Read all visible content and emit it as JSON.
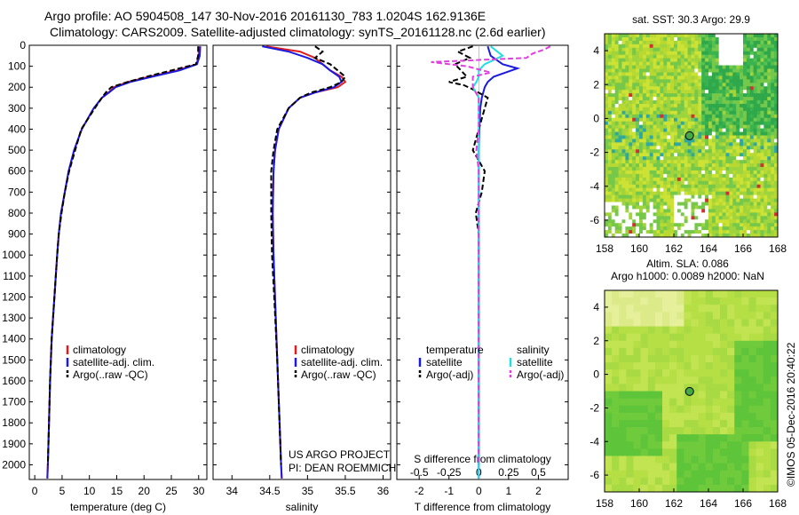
{
  "title_line1": "Argo profile: AO 5904508_147 30-Nov-2016 20161130_783 1.0204S 162.9136E",
  "title_line2": "Climatology: CARS2009. Satellite-adjusted climatology: synTS_20161128.nc (2.6d earlier)",
  "credit": "©IMOS 05-Dec-2016 20:40:22",
  "project_line1": "US ARGO PROJECT",
  "project_line2": "PI: DEAN ROEMMICH",
  "colors": {
    "climatology": "#e41a1c",
    "satellite": "#1a1ae0",
    "argo": "#000000",
    "sal_satellite": "#22dede",
    "sal_argo": "#e040e0"
  },
  "chart_data": [
    {
      "type": "line",
      "xlabel": "temperature (deg C)",
      "ylabel": "",
      "xticks": [
        "0",
        "5",
        "10",
        "15",
        "20",
        "25",
        "30"
      ],
      "yticks": [
        "0",
        "100",
        "200",
        "300",
        "400",
        "500",
        "600",
        "700",
        "800",
        "900",
        "1000",
        "1100",
        "1200",
        "1300",
        "1400",
        "1500",
        "1600",
        "1700",
        "1800",
        "1900",
        "2000"
      ],
      "xlim": [
        -1,
        31.5
      ],
      "ylim": [
        0,
        2070
      ],
      "legend": [
        "climatology",
        "satellite-adj. clim.",
        "Argo(..raw -QC)"
      ],
      "series": [
        {
          "name": "climatology",
          "depth": [
            5,
            50,
            90,
            120,
            150,
            175,
            200,
            225,
            250,
            300,
            400,
            500,
            600,
            700,
            800,
            900,
            1000,
            1200,
            1400,
            1600,
            1800,
            2000,
            2065
          ],
          "values": [
            30.0,
            30.0,
            29.6,
            26,
            21,
            17,
            14.5,
            13.5,
            12.3,
            10.8,
            8.6,
            7.2,
            6.2,
            5.5,
            4.8,
            4.4,
            4.1,
            3.6,
            3.1,
            2.8,
            2.6,
            2.4,
            2.3
          ]
        },
        {
          "name": "satellite-adj. clim.",
          "depth": [
            5,
            50,
            90,
            120,
            150,
            175,
            200,
            225,
            250,
            300,
            400,
            500,
            600,
            700,
            800,
            900,
            1000,
            1200,
            1400,
            1600,
            1800,
            2000,
            2065
          ],
          "values": [
            30.3,
            30.2,
            29.7,
            26.5,
            21.5,
            17.5,
            14.8,
            13.6,
            12.3,
            10.8,
            8.6,
            7.2,
            6.2,
            5.5,
            4.8,
            4.4,
            4.1,
            3.6,
            3.1,
            2.8,
            2.6,
            2.4,
            2.3
          ]
        },
        {
          "name": "Argo(..raw -QC)",
          "depth": [
            5,
            50,
            90,
            120,
            150,
            175,
            200,
            225,
            250,
            300,
            400,
            500,
            600,
            700,
            800,
            900,
            1000,
            1200,
            1400,
            1600,
            1800,
            2000
          ],
          "values": [
            29.9,
            29.9,
            29.5,
            25,
            20.5,
            17,
            14,
            13,
            12.3,
            11,
            8.5,
            7.4,
            6.3,
            5.5,
            4.9,
            4.4,
            4.1,
            3.6,
            3.1,
            2.8,
            2.6,
            2.4
          ]
        }
      ]
    },
    {
      "type": "line",
      "xlabel": "salinity",
      "xticks": [
        "34",
        "34.5",
        "35",
        "35.5",
        "36"
      ],
      "xlim": [
        33.75,
        36.1
      ],
      "ylim": [
        0,
        2070
      ],
      "legend": [
        "climatology",
        "satellite-adj. clim.",
        "Argo(..raw -QC)"
      ],
      "series": [
        {
          "name": "climatology",
          "depth": [
            5,
            30,
            60,
            90,
            120,
            150,
            175,
            200,
            225,
            250,
            300,
            400,
            500,
            600,
            800,
            1000,
            1200,
            1500,
            1800,
            2000,
            2065
          ],
          "values": [
            34.45,
            34.9,
            35.1,
            35.2,
            35.3,
            35.45,
            35.5,
            35.4,
            35.1,
            34.9,
            34.75,
            34.62,
            34.57,
            34.55,
            34.54,
            34.55,
            34.57,
            34.6,
            34.63,
            34.65,
            34.66
          ]
        },
        {
          "name": "satellite-adj. clim.",
          "depth": [
            5,
            30,
            60,
            90,
            120,
            150,
            175,
            200,
            225,
            250,
            300,
            400,
            500,
            600,
            800,
            1000,
            1200,
            1500,
            1800,
            2000,
            2065
          ],
          "values": [
            34.4,
            34.75,
            35.0,
            35.2,
            35.3,
            35.42,
            35.45,
            35.35,
            35.1,
            34.9,
            34.75,
            34.62,
            34.57,
            34.55,
            34.54,
            34.55,
            34.57,
            34.6,
            34.63,
            34.65,
            34.66
          ]
        },
        {
          "name": "Argo(..raw -QC)",
          "depth": [
            5,
            30,
            60,
            90,
            120,
            150,
            175,
            200,
            225,
            250,
            300,
            400,
            500,
            600,
            800,
            1000,
            1200,
            1500,
            1800,
            2000
          ],
          "values": [
            35.1,
            35.2,
            35.1,
            35.3,
            35.4,
            35.5,
            35.45,
            35.3,
            35.05,
            34.9,
            34.75,
            34.6,
            34.55,
            34.52,
            34.52,
            34.53,
            34.56,
            34.6,
            34.63,
            34.65
          ]
        }
      ]
    },
    {
      "type": "line",
      "xlabel": "T difference from climatology",
      "xlabel_top": "S difference from climatology",
      "xticks": [
        "-2",
        "-1",
        "0",
        "1",
        "2"
      ],
      "xticks_top": [
        "-0.5",
        "-0.25",
        "0",
        "0.25",
        "0.5"
      ],
      "xlim": [
        -2.75,
        3.0
      ],
      "ylim": [
        0,
        2070
      ],
      "legend_t_title": "temperature",
      "legend_s_title": "salinity",
      "legend": [
        "satellite",
        "Argo(-adj)",
        "satellite",
        "Argo(-adj)"
      ],
      "series": [
        {
          "name": "satellite",
          "kind": "T",
          "depth": [
            5,
            50,
            90,
            110,
            130,
            150,
            175,
            200,
            250,
            300,
            400,
            500,
            700,
            900,
            1200,
            1600,
            2000,
            2065
          ],
          "values": [
            0.3,
            0.4,
            0.8,
            1.3,
            0.9,
            0.5,
            0.3,
            0.2,
            0.1,
            0.05,
            0.02,
            0.0,
            0.0,
            0.0,
            0.0,
            0.0,
            0.0,
            0.0
          ]
        },
        {
          "name": "Argo(-adj)",
          "kind": "T",
          "depth": [
            5,
            30,
            60,
            90,
            120,
            150,
            175,
            190,
            210,
            250,
            300,
            400,
            500,
            600,
            700,
            800,
            900,
            1000,
            1200,
            1500,
            1800,
            2000
          ],
          "values": [
            -0.2,
            -0.7,
            -0.3,
            -0.8,
            -0.6,
            -0.4,
            -1.0,
            -0.5,
            -0.2,
            0.3,
            0.2,
            0.0,
            -0.2,
            0.2,
            0.1,
            -0.1,
            0.0,
            0.0,
            0.0,
            0.0,
            0.0,
            0.0
          ]
        },
        {
          "name": "satellite",
          "kind": "S",
          "depth": [
            5,
            50,
            90,
            120,
            150,
            175,
            200,
            250,
            300,
            400,
            500,
            700,
            1000,
            1500,
            2000,
            2065
          ],
          "values": [
            0.1,
            0.2,
            0.05,
            0.0,
            0.0,
            -0.02,
            -0.05,
            0.0,
            0.0,
            0.0,
            0.0,
            0.0,
            0.0,
            0.0,
            0.0,
            0.0
          ]
        },
        {
          "name": "Argo(-adj)",
          "kind": "S",
          "depth": [
            5,
            20,
            40,
            60,
            80,
            100,
            130,
            150,
            175,
            200,
            250,
            300,
            400,
            500,
            600,
            800,
            1000,
            1500,
            2000
          ],
          "values": [
            0.6,
            0.55,
            0.45,
            0.4,
            -0.4,
            -0.1,
            0.1,
            -0.05,
            -0.05,
            -0.05,
            0.0,
            0.0,
            0.0,
            -0.02,
            0.0,
            0.0,
            0.0,
            0.0,
            0.0
          ]
        }
      ]
    },
    {
      "type": "heatmap",
      "title": "sat. SST: 30.3 Argo: 29.9",
      "xticks": [
        "158",
        "160",
        "162",
        "164",
        "166",
        "168"
      ],
      "yticks": [
        "4",
        "2",
        "0",
        "-2",
        "-4",
        "-6"
      ],
      "xlim": [
        158,
        168
      ],
      "ylim": [
        -7,
        5
      ],
      "argo_position": [
        162.91,
        -1.02
      ]
    },
    {
      "type": "heatmap",
      "title_line1": "Altim. SLA: 0.086",
      "title_line2": "Argo h1000: 0.0089 h2000: NaN",
      "xticks": [
        "158",
        "160",
        "162",
        "164",
        "166",
        "168"
      ],
      "yticks": [
        "4",
        "2",
        "0",
        "-2",
        "-4",
        "-6"
      ],
      "xlim": [
        158,
        168
      ],
      "ylim": [
        -7,
        5
      ],
      "argo_position": [
        162.91,
        -1.02
      ]
    }
  ]
}
